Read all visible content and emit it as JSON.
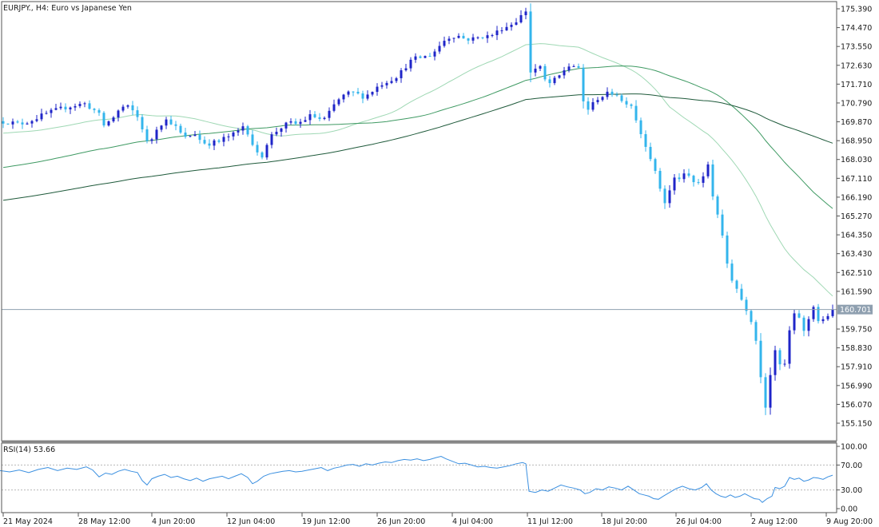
{
  "window": {
    "symbol_title": "EURJPY., H4:  Euro vs Japanese Yen",
    "indicator_title": "RSI(14) 53.66"
  },
  "colors": {
    "background": "#ffffff",
    "frame": "#555555",
    "bull": "#1f25c8",
    "bear": "#33b5ec",
    "ma_fast": "#9fd8b4",
    "ma_mid": "#3f9a63",
    "ma_slow": "#1f5a3b",
    "rsi_line": "#3a8fe0",
    "rsi_level": "#b8b8b8",
    "bid_line": "#8fa0b0",
    "bid_tag_bg": "#8fa0b0"
  },
  "chart_data": [
    {
      "type": "candlestick",
      "symbol": "EURJPY.",
      "timeframe": "H4",
      "title": "EURJPY., H4:  Euro vs Japanese Yen",
      "ylim": [
        154.1,
        176.1
      ],
      "y_ticks": [
        "175.390",
        "174.470",
        "173.550",
        "172.630",
        "171.710",
        "170.790",
        "169.870",
        "168.950",
        "168.030",
        "167.110",
        "166.190",
        "165.270",
        "164.350",
        "163.430",
        "162.510",
        "161.590",
        "160.701",
        "159.750",
        "158.830",
        "157.910",
        "156.990",
        "156.070",
        "155.150"
      ],
      "x_ticks": [
        "21 May 2024",
        "28 May 12:00",
        "4 Jun 20:00",
        "12 Jun 04:00",
        "19 Jun 12:00",
        "26 Jun 20:00",
        "4 Jul 04:00",
        "11 Jul 12:00",
        "18 Jul 20:00",
        "26 Jul 04:00",
        "2 Aug 12:00",
        "9 Aug 20:00"
      ],
      "current_price": "160.701",
      "close_path": [
        [
          0,
          169.9
        ],
        [
          12,
          169.85
        ],
        [
          24,
          169.75
        ],
        [
          36,
          169.9
        ],
        [
          48,
          170.1
        ],
        [
          60,
          170.3
        ],
        [
          72,
          170.45
        ],
        [
          84,
          170.6
        ],
        [
          96,
          170.7
        ],
        [
          106,
          170.75
        ],
        [
          116,
          170.5
        ],
        [
          124,
          170.2
        ],
        [
          130,
          169.7
        ],
        [
          140,
          170.0
        ],
        [
          148,
          170.4
        ],
        [
          156,
          170.65
        ],
        [
          164,
          170.5
        ],
        [
          172,
          170.1
        ],
        [
          180,
          169.4
        ],
        [
          186,
          168.6
        ],
        [
          194,
          169.5
        ],
        [
          202,
          169.8
        ],
        [
          210,
          170.0
        ],
        [
          218,
          169.7
        ],
        [
          226,
          169.3
        ],
        [
          234,
          169.0
        ],
        [
          242,
          169.4
        ],
        [
          250,
          169.0
        ],
        [
          258,
          168.8
        ],
        [
          266,
          168.85
        ],
        [
          274,
          168.9
        ],
        [
          282,
          169.1
        ],
        [
          290,
          169.2
        ],
        [
          298,
          169.4
        ],
        [
          306,
          169.75
        ],
        [
          314,
          169.0
        ],
        [
          320,
          168.4
        ],
        [
          326,
          168.0
        ],
        [
          332,
          168.7
        ],
        [
          340,
          169.2
        ],
        [
          348,
          169.5
        ],
        [
          356,
          169.7
        ],
        [
          364,
          169.8
        ],
        [
          372,
          169.75
        ],
        [
          380,
          169.95
        ],
        [
          388,
          170.15
        ],
        [
          396,
          170.1
        ],
        [
          404,
          169.9
        ],
        [
          412,
          170.3
        ],
        [
          420,
          170.8
        ],
        [
          428,
          171.1
        ],
        [
          436,
          171.25
        ],
        [
          444,
          171.3
        ],
        [
          452,
          171.1
        ],
        [
          460,
          171.2
        ],
        [
          468,
          171.45
        ],
        [
          476,
          171.7
        ],
        [
          484,
          171.85
        ],
        [
          492,
          172.0
        ],
        [
          500,
          172.2
        ],
        [
          508,
          172.6
        ],
        [
          516,
          172.9
        ],
        [
          524,
          173.0
        ],
        [
          532,
          173.05
        ],
        [
          540,
          173.15
        ],
        [
          548,
          173.5
        ],
        [
          556,
          173.85
        ],
        [
          564,
          174.05
        ],
        [
          572,
          174.1
        ],
        [
          580,
          173.95
        ],
        [
          588,
          173.9
        ],
        [
          596,
          173.95
        ],
        [
          604,
          174.05
        ],
        [
          612,
          174.05
        ],
        [
          620,
          174.2
        ],
        [
          628,
          174.45
        ],
        [
          636,
          174.55
        ],
        [
          644,
          174.75
        ],
        [
          650,
          174.95
        ],
        [
          656,
          175.2
        ],
        [
          659,
          175.35
        ],
        [
          660,
          172.5
        ],
        [
          664,
          172.3
        ],
        [
          670,
          172.45
        ],
        [
          676,
          172.5
        ],
        [
          682,
          171.9
        ],
        [
          688,
          171.75
        ],
        [
          694,
          171.9
        ],
        [
          700,
          172.1
        ],
        [
          706,
          172.4
        ],
        [
          712,
          172.6
        ],
        [
          718,
          172.6
        ],
        [
          724,
          172.4
        ],
        [
          728,
          171.0
        ],
        [
          732,
          170.7
        ],
        [
          738,
          170.4
        ],
        [
          744,
          170.9
        ],
        [
          750,
          171.1
        ],
        [
          756,
          171.15
        ],
        [
          762,
          171.25
        ],
        [
          768,
          171.3
        ],
        [
          774,
          171.2
        ],
        [
          780,
          170.7
        ],
        [
          786,
          170.9
        ],
        [
          792,
          170.6
        ],
        [
          798,
          169.7
        ],
        [
          804,
          169.1
        ],
        [
          810,
          168.6
        ],
        [
          816,
          167.9
        ],
        [
          822,
          167.1
        ],
        [
          828,
          166.4
        ],
        [
          834,
          165.7
        ],
        [
          840,
          166.9
        ],
        [
          846,
          167.2
        ],
        [
          852,
          167.1
        ],
        [
          858,
          167.3
        ],
        [
          864,
          167.15
        ],
        [
          870,
          166.8
        ],
        [
          876,
          166.95
        ],
        [
          882,
          167.2
        ],
        [
          886,
          167.8
        ],
        [
          890,
          166.5
        ],
        [
          896,
          165.8
        ],
        [
          900,
          165.0
        ],
        [
          904,
          164.2
        ],
        [
          908,
          163.3
        ],
        [
          912,
          162.6
        ],
        [
          918,
          162.0
        ],
        [
          924,
          161.6
        ],
        [
          930,
          161.0
        ],
        [
          936,
          160.6
        ],
        [
          942,
          160.0
        ],
        [
          946,
          159.2
        ],
        [
          950,
          158.3
        ],
        [
          954,
          156.7
        ],
        [
          958,
          156.0
        ],
        [
          962,
          157.2
        ],
        [
          966,
          157.9
        ],
        [
          970,
          158.6
        ],
        [
          974,
          158.1
        ],
        [
          978,
          157.9
        ],
        [
          982,
          158.0
        ],
        [
          986,
          158.8
        ],
        [
          990,
          160.5
        ],
        [
          994,
          160.4
        ],
        [
          998,
          160.6
        ],
        [
          1002,
          160.1
        ],
        [
          1006,
          159.6
        ],
        [
          1010,
          160.1
        ],
        [
          1014,
          160.4
        ],
        [
          1018,
          160.9
        ],
        [
          1022,
          160.3
        ],
        [
          1026,
          160.0
        ],
        [
          1030,
          160.15
        ],
        [
          1034,
          160.3
        ],
        [
          1038,
          160.55
        ],
        [
          1042,
          160.7
        ]
      ]
    },
    {
      "type": "line",
      "title": "RSI(14) 53.66",
      "ylim": [
        0,
        100
      ],
      "levels": [
        30,
        70
      ],
      "y_ticks": [
        "100.00",
        "70.00",
        "30.00",
        "0.00"
      ],
      "path": [
        [
          0,
          61
        ],
        [
          12,
          59
        ],
        [
          24,
          62
        ],
        [
          36,
          58
        ],
        [
          48,
          63
        ],
        [
          60,
          66
        ],
        [
          72,
          61
        ],
        [
          84,
          65
        ],
        [
          96,
          63
        ],
        [
          108,
          67
        ],
        [
          116,
          62
        ],
        [
          124,
          51
        ],
        [
          132,
          57
        ],
        [
          140,
          55
        ],
        [
          148,
          60
        ],
        [
          156,
          63
        ],
        [
          164,
          60
        ],
        [
          172,
          58
        ],
        [
          178,
          45
        ],
        [
          184,
          38
        ],
        [
          190,
          48
        ],
        [
          198,
          52
        ],
        [
          206,
          55
        ],
        [
          214,
          50
        ],
        [
          222,
          52
        ],
        [
          230,
          48
        ],
        [
          238,
          45
        ],
        [
          246,
          49
        ],
        [
          254,
          44
        ],
        [
          262,
          48
        ],
        [
          270,
          50
        ],
        [
          278,
          52
        ],
        [
          286,
          48
        ],
        [
          294,
          52
        ],
        [
          302,
          56
        ],
        [
          310,
          50
        ],
        [
          316,
          40
        ],
        [
          322,
          44
        ],
        [
          330,
          52
        ],
        [
          338,
          56
        ],
        [
          346,
          58
        ],
        [
          354,
          60
        ],
        [
          362,
          61
        ],
        [
          370,
          59
        ],
        [
          378,
          60
        ],
        [
          386,
          62
        ],
        [
          394,
          64
        ],
        [
          402,
          66
        ],
        [
          410,
          61
        ],
        [
          418,
          65
        ],
        [
          426,
          67
        ],
        [
          434,
          70
        ],
        [
          442,
          71
        ],
        [
          450,
          68
        ],
        [
          458,
          72
        ],
        [
          466,
          70
        ],
        [
          474,
          73
        ],
        [
          482,
          75
        ],
        [
          490,
          74
        ],
        [
          498,
          77
        ],
        [
          506,
          79
        ],
        [
          514,
          78
        ],
        [
          522,
          80
        ],
        [
          530,
          77
        ],
        [
          538,
          79
        ],
        [
          546,
          82
        ],
        [
          552,
          84
        ],
        [
          558,
          80
        ],
        [
          566,
          76
        ],
        [
          574,
          72
        ],
        [
          582,
          73
        ],
        [
          590,
          70
        ],
        [
          598,
          67
        ],
        [
          606,
          68
        ],
        [
          614,
          66
        ],
        [
          622,
          65
        ],
        [
          630,
          67
        ],
        [
          638,
          69
        ],
        [
          646,
          72
        ],
        [
          654,
          74
        ],
        [
          658,
          72
        ],
        [
          662,
          28
        ],
        [
          670,
          26
        ],
        [
          678,
          30
        ],
        [
          686,
          28
        ],
        [
          694,
          33
        ],
        [
          702,
          38
        ],
        [
          710,
          35
        ],
        [
          718,
          33
        ],
        [
          726,
          30
        ],
        [
          732,
          24
        ],
        [
          738,
          26
        ],
        [
          746,
          32
        ],
        [
          754,
          30
        ],
        [
          762,
          35
        ],
        [
          770,
          33
        ],
        [
          778,
          30
        ],
        [
          786,
          36
        ],
        [
          792,
          31
        ],
        [
          800,
          24
        ],
        [
          806,
          22
        ],
        [
          812,
          20
        ],
        [
          818,
          16
        ],
        [
          824,
          15
        ],
        [
          830,
          20
        ],
        [
          838,
          26
        ],
        [
          846,
          32
        ],
        [
          854,
          36
        ],
        [
          862,
          32
        ],
        [
          870,
          30
        ],
        [
          878,
          34
        ],
        [
          884,
          40
        ],
        [
          890,
          30
        ],
        [
          896,
          24
        ],
        [
          902,
          20
        ],
        [
          908,
          18
        ],
        [
          914,
          22
        ],
        [
          920,
          18
        ],
        [
          926,
          20
        ],
        [
          932,
          24
        ],
        [
          938,
          20
        ],
        [
          944,
          16
        ],
        [
          950,
          15
        ],
        [
          954,
          10
        ],
        [
          960,
          16
        ],
        [
          966,
          20
        ],
        [
          970,
          34
        ],
        [
          976,
          32
        ],
        [
          982,
          36
        ],
        [
          988,
          50
        ],
        [
          994,
          47
        ],
        [
          1000,
          49
        ],
        [
          1006,
          44
        ],
        [
          1012,
          46
        ],
        [
          1018,
          50
        ],
        [
          1024,
          49
        ],
        [
          1030,
          47
        ],
        [
          1036,
          51
        ],
        [
          1042,
          53.66
        ]
      ]
    }
  ]
}
